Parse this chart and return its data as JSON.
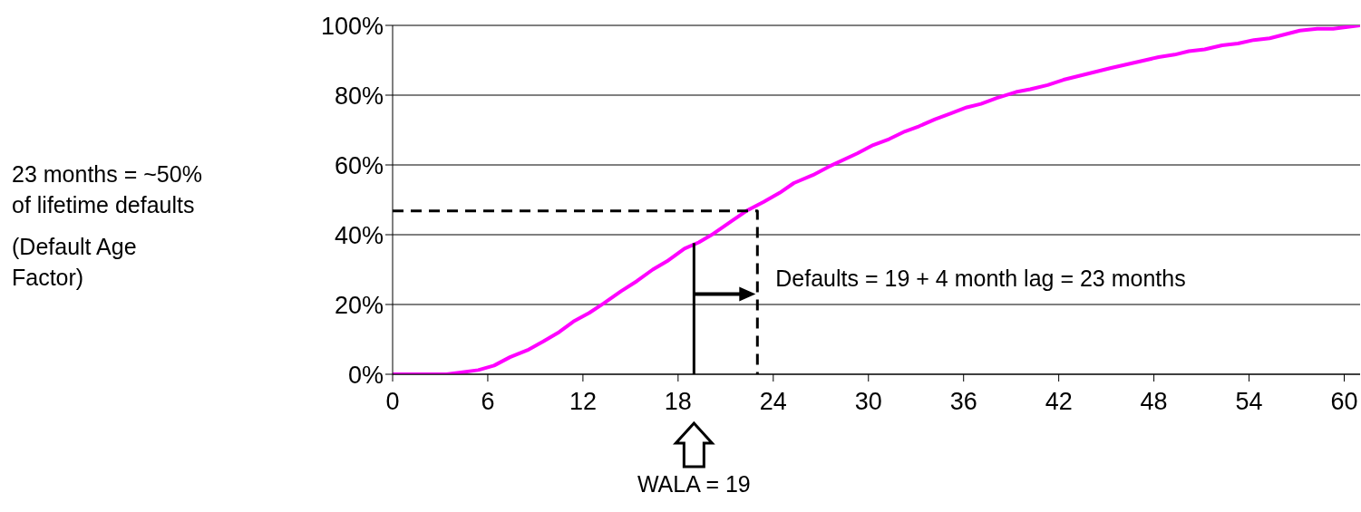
{
  "chart_data": {
    "type": "line",
    "xlim": [
      0,
      61
    ],
    "xticks": [
      0,
      6,
      12,
      18,
      24,
      30,
      36,
      42,
      48,
      54,
      60
    ],
    "ylim": [
      0,
      100
    ],
    "yticks": [
      {
        "value": 0,
        "label": "0%"
      },
      {
        "value": 20,
        "label": "20%"
      },
      {
        "value": 40,
        "label": "40%"
      },
      {
        "value": 60,
        "label": "60%"
      },
      {
        "value": 80,
        "label": "80%"
      },
      {
        "value": 100,
        "label": "100%"
      }
    ],
    "grid": "y",
    "marker": "none",
    "line_style": "solid",
    "series": [
      {
        "color": "#ff00ff",
        "x": [
          0,
          3.4,
          5.4,
          6.4,
          7.4,
          8.5,
          9.5,
          10.5,
          11.4,
          12.4,
          13.3,
          14.4,
          15.4,
          16.4,
          17.3,
          18.4,
          19.3,
          20.2,
          21.4,
          22.3,
          23.4,
          24.4,
          25.3,
          26.5,
          27.5,
          29.3,
          30.3,
          31.3,
          32.3,
          33.2,
          34.2,
          35.2,
          36.2,
          37.1,
          38.1,
          39.3,
          40.2,
          41.3,
          42.3,
          45.3,
          48.3,
          49.3,
          50.2,
          51.2,
          52.3,
          53.3,
          54.3,
          55.3,
          57.2,
          58.3,
          59.3,
          61
        ],
        "values": [
          0,
          0,
          1.2,
          2.5,
          4.9,
          6.9,
          9.4,
          12.1,
          15.1,
          17.6,
          20.3,
          23.8,
          26.7,
          30,
          32.4,
          36,
          37.8,
          40.2,
          44,
          46.8,
          49.4,
          52,
          54.8,
          57.1,
          59.5,
          63.3,
          65.7,
          67.4,
          69.6,
          71.1,
          73.1,
          74.8,
          76.5,
          77.5,
          79.2,
          80.9,
          81.7,
          82.9,
          84.4,
          87.8,
          90.9,
          91.6,
          92.6,
          93.1,
          94.3,
          94.8,
          95.8,
          96.3,
          98.5,
          99,
          99,
          100
        ]
      },
      {
        "color": "#000000",
        "line_style": "dashed",
        "x": [
          0,
          23,
          23
        ],
        "values": [
          46.8,
          46.8,
          0
        ]
      },
      {
        "color": "#000000",
        "x": [
          19,
          19
        ],
        "values": [
          0,
          37.6
        ]
      }
    ],
    "annotations": [
      "23 months = ~50%\nof lifetime defaults",
      "(Default Age\nFactor)",
      {
        "text": "Defaults = 19 + 4 month lag = 23 months",
        "x": 23,
        "y": 23
      },
      "WALA = 19"
    ]
  }
}
